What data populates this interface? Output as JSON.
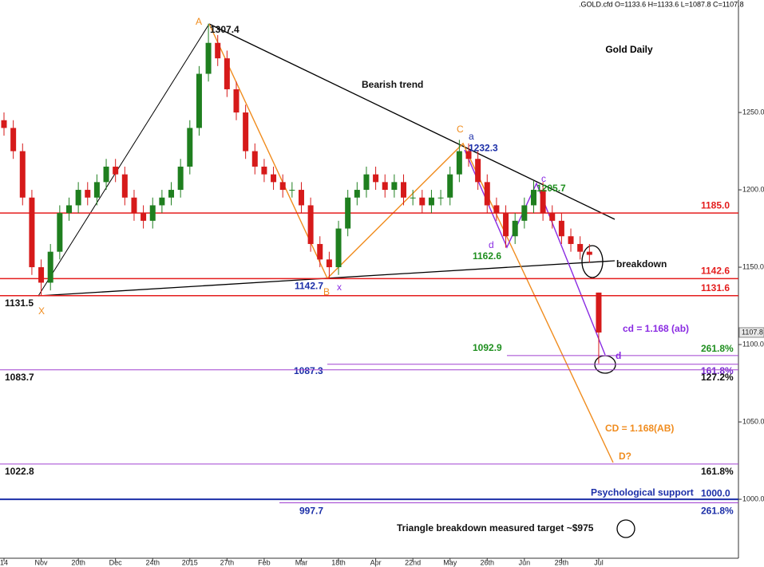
{
  "chart_data": {
    "type": "candlestick",
    "title": "Gold Daily",
    "header": ".GOLD.cfd O=1133.6 H=1133.6 L=1087.8 C=1107.8",
    "categories": [
      "14",
      null,
      null,
      null,
      "Nov",
      null,
      null,
      null,
      "20th",
      null,
      null,
      null,
      "Dec",
      null,
      null,
      null,
      "24th",
      null,
      null,
      null,
      "2015",
      null,
      null,
      null,
      "27th",
      null,
      null,
      null,
      "Feb",
      null,
      null,
      null,
      "Mar",
      null,
      null,
      null,
      "18th",
      null,
      null,
      null,
      "Apr",
      null,
      null,
      null,
      "22nd",
      null,
      null,
      null,
      "May",
      null,
      null,
      null,
      "26th",
      null,
      null,
      null,
      "Jun",
      null,
      null,
      null,
      "29th",
      null,
      null,
      null,
      "Jul"
    ],
    "open": [
      1245,
      1240,
      1225,
      1195,
      1150,
      1140,
      1160,
      1185,
      1190,
      1200,
      1195,
      1205,
      1215,
      1210,
      1195,
      1185,
      1180,
      1190,
      1195,
      1200,
      1215,
      1240,
      1275,
      1295,
      1285,
      1265,
      1250,
      1225,
      1215,
      1210,
      1205,
      1200,
      1200,
      1190,
      1165,
      1155,
      1150,
      1175,
      1195,
      1200,
      1210,
      1205,
      1200,
      1205,
      1195,
      1195,
      1190,
      1195,
      1195,
      1210,
      1225,
      1220,
      1205,
      1190,
      1185,
      1170,
      1180,
      1190,
      1200,
      1185,
      1180,
      1170,
      1165,
      1160,
      1133.6
    ],
    "high": [
      1250,
      1245,
      1230,
      1200,
      1155,
      1165,
      1190,
      1195,
      1205,
      1205,
      1210,
      1220,
      1220,
      1215,
      1200,
      1190,
      1195,
      1200,
      1205,
      1220,
      1245,
      1280,
      1307.4,
      1300,
      1290,
      1270,
      1255,
      1230,
      1220,
      1215,
      1210,
      1205,
      1205,
      1195,
      1170,
      1160,
      1180,
      1200,
      1205,
      1215,
      1215,
      1210,
      1210,
      1210,
      1200,
      1200,
      1200,
      1200,
      1215,
      1232.3,
      1230,
      1225,
      1210,
      1195,
      1190,
      1185,
      1195,
      1205.7,
      1205,
      1190,
      1185,
      1175,
      1170,
      1165,
      1133.6
    ],
    "low": [
      1235,
      1220,
      1190,
      1145,
      1131.5,
      1135,
      1155,
      1180,
      1185,
      1190,
      1190,
      1200,
      1205,
      1190,
      1180,
      1175,
      1175,
      1185,
      1190,
      1195,
      1210,
      1235,
      1270,
      1280,
      1260,
      1245,
      1220,
      1210,
      1205,
      1200,
      1195,
      1195,
      1185,
      1160,
      1150,
      1142.7,
      1145,
      1170,
      1190,
      1195,
      1200,
      1195,
      1195,
      1190,
      1190,
      1185,
      1185,
      1190,
      1190,
      1205,
      1215,
      1200,
      1185,
      1180,
      1162.6,
      1165,
      1175,
      1185,
      1180,
      1175,
      1165,
      1160,
      1155,
      1153,
      1087.8
    ],
    "close": [
      1240,
      1225,
      1195,
      1150,
      1140,
      1160,
      1185,
      1190,
      1200,
      1195,
      1205,
      1215,
      1210,
      1195,
      1185,
      1180,
      1190,
      1195,
      1200,
      1215,
      1240,
      1275,
      1295,
      1285,
      1265,
      1250,
      1225,
      1215,
      1210,
      1205,
      1200,
      1200,
      1190,
      1165,
      1155,
      1150,
      1175,
      1195,
      1200,
      1210,
      1205,
      1200,
      1205,
      1195,
      1195,
      1190,
      1195,
      1195,
      1210,
      1225,
      1220,
      1205,
      1190,
      1185,
      1170,
      1180,
      1190,
      1200,
      1185,
      1180,
      1170,
      1165,
      1160,
      1158,
      1107.8
    ],
    "up_color": "#1f7f1f",
    "down_color": "#d61a1a",
    "ylim": [
      961.9,
      1322.7
    ],
    "yticks": [
      {
        "value": 1000,
        "label": "1000.0"
      },
      {
        "value": 1050,
        "label": "1050.0"
      },
      {
        "value": 1100,
        "label": "1100.0"
      },
      {
        "value": 1150,
        "label": "1150.0"
      },
      {
        "value": 1200,
        "label": "1200.0"
      },
      {
        "value": 1250,
        "label": "1250.0"
      }
    ],
    "last_price": {
      "value": 1107.8,
      "label": "1107.8"
    },
    "levels": [
      {
        "value": 1185.0,
        "color": "#e41e1e",
        "right": "1185.0"
      },
      {
        "value": 1142.6,
        "color": "#e41e1e",
        "right": "1142.6"
      },
      {
        "value": 1131.6,
        "color": "#e41e1e",
        "right": "1131.6"
      },
      {
        "value": 1092.9,
        "color": "#a040d0",
        "right": "261.8%",
        "mid": "1092.9"
      },
      {
        "value": 1087.3,
        "color": "#a040d0",
        "right": "161.8%",
        "mid": "1087.3"
      },
      {
        "value": 1083.7,
        "color": "#a040d0",
        "right": "127.2%",
        "left": "1083.7"
      },
      {
        "value": 1022.8,
        "color": "#a040d0",
        "right": "161.8%",
        "left": "1022.8"
      },
      {
        "value": 1000.0,
        "color": "#1c2fa8",
        "right": "1000.0",
        "mid": "Psychological support"
      },
      {
        "value": 997.7,
        "color": "#a040d0",
        "right": "261.8%",
        "mid": "997.7"
      }
    ],
    "annotations": [
      {
        "text": "A"
      },
      {
        "text": "1307.4",
        "value": 1307.4
      },
      {
        "text": "Bearish trend"
      },
      {
        "text": "C"
      },
      {
        "text": "a"
      },
      {
        "text": "1232.3",
        "value": 1232.3
      },
      {
        "text": "c"
      },
      {
        "text": "1205.7",
        "value": 1205.7
      },
      {
        "text": "d"
      },
      {
        "text": "1162.6",
        "value": 1162.6
      },
      {
        "text": "breakdown"
      },
      {
        "text": "1142.7",
        "value": 1142.7
      },
      {
        "text": "x"
      },
      {
        "text": "B"
      },
      {
        "text": "1131.5",
        "value": 1131.5
      },
      {
        "text": "X"
      },
      {
        "text": "cd = 1.168 (ab)"
      },
      {
        "text": "d"
      },
      {
        "text": "CD = 1.168(AB)"
      },
      {
        "text": "D?"
      },
      {
        "text": "Triangle breakdown measured target ~$975"
      }
    ]
  }
}
